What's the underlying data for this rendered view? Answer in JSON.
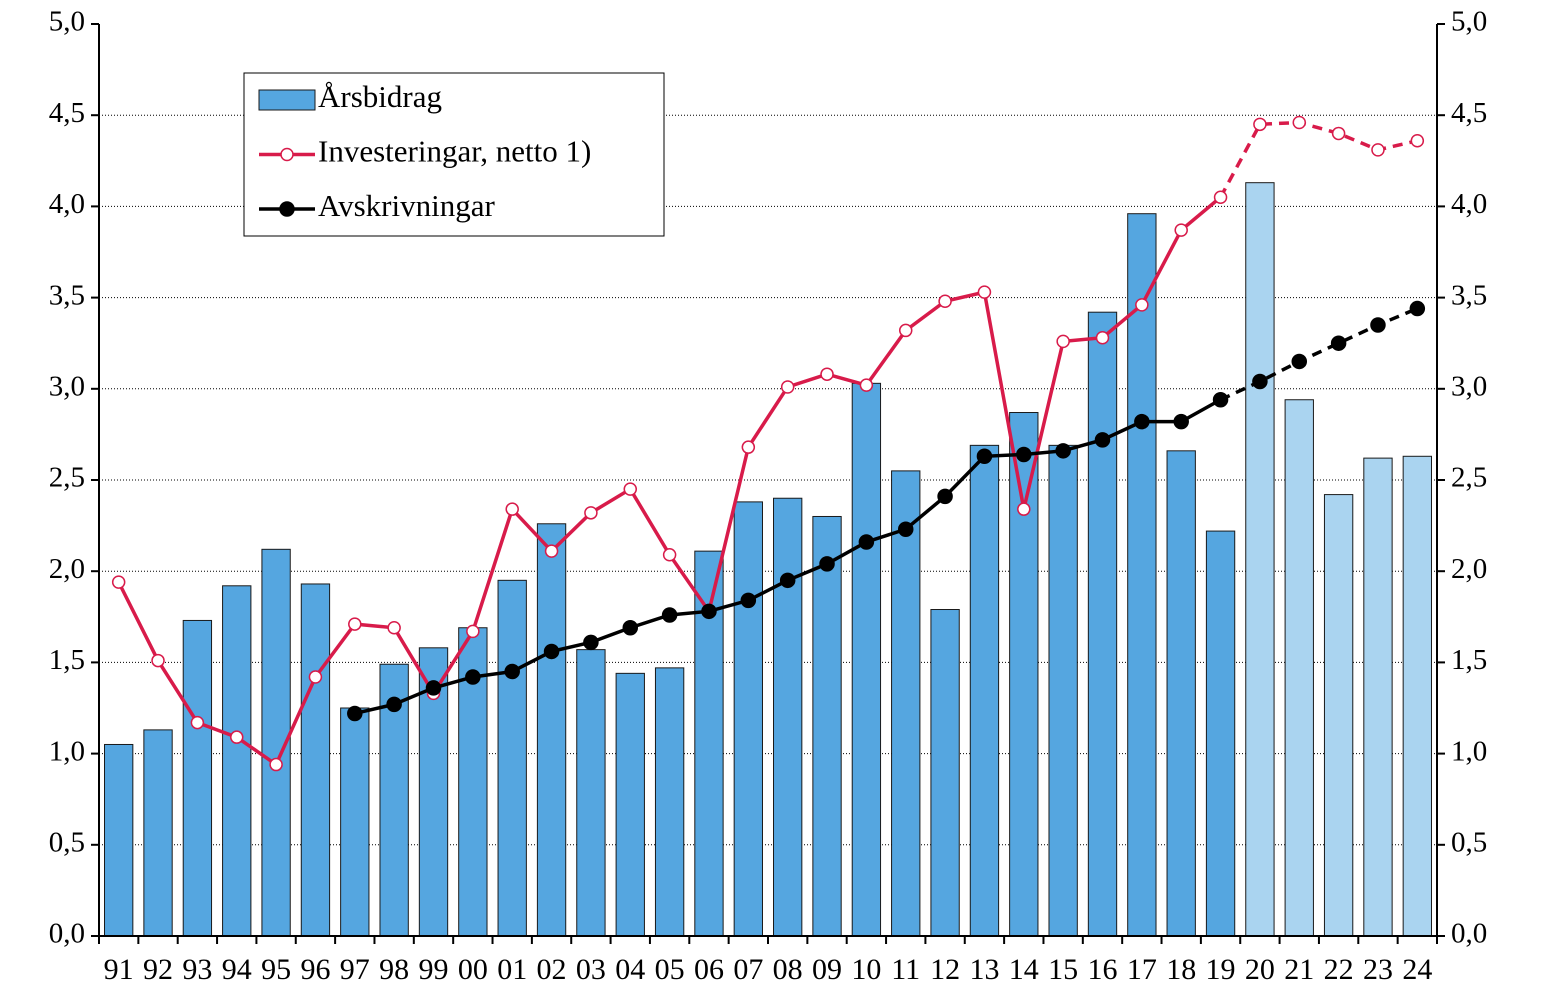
{
  "chart_data": {
    "type": "bar",
    "categories": [
      "91",
      "92",
      "93",
      "94",
      "95",
      "96",
      "97",
      "98",
      "99",
      "00",
      "01",
      "02",
      "03",
      "04",
      "05",
      "06",
      "07",
      "08",
      "09",
      "10",
      "11",
      "12",
      "13",
      "14",
      "15",
      "16",
      "17",
      "18",
      "19",
      "20",
      "21",
      "22",
      "23",
      "24"
    ],
    "series": [
      {
        "name": "Årsbidrag",
        "type": "bar",
        "color": "#55a6e0",
        "colors": [
          "#55a6e0",
          "#55a6e0",
          "#55a6e0",
          "#55a6e0",
          "#55a6e0",
          "#55a6e0",
          "#55a6e0",
          "#55a6e0",
          "#55a6e0",
          "#55a6e0",
          "#55a6e0",
          "#55a6e0",
          "#55a6e0",
          "#55a6e0",
          "#55a6e0",
          "#55a6e0",
          "#55a6e0",
          "#55a6e0",
          "#55a6e0",
          "#55a6e0",
          "#55a6e0",
          "#55a6e0",
          "#55a6e0",
          "#55a6e0",
          "#55a6e0",
          "#55a6e0",
          "#55a6e0",
          "#55a6e0",
          "#55a6e0",
          "#aad4f0",
          "#aad4f0",
          "#aad4f0",
          "#aad4f0",
          "#aad4f0"
        ],
        "values": [
          1.05,
          1.13,
          1.73,
          1.92,
          2.12,
          1.93,
          1.25,
          1.49,
          1.58,
          1.69,
          1.95,
          2.26,
          1.57,
          1.44,
          1.47,
          2.11,
          2.38,
          2.4,
          2.3,
          3.03,
          2.55,
          1.79,
          2.69,
          2.87,
          2.69,
          3.42,
          3.96,
          2.66,
          2.22,
          4.13,
          2.94,
          2.42,
          2.62,
          2.63
        ]
      },
      {
        "name": "Investeringar, netto 1)",
        "type": "line",
        "color": "#d81b4a",
        "marker": "hollow",
        "dash_start": 28,
        "values": [
          1.94,
          1.51,
          1.17,
          1.09,
          0.94,
          1.42,
          1.71,
          1.69,
          1.33,
          1.67,
          2.34,
          2.11,
          2.32,
          2.45,
          2.09,
          1.78,
          2.68,
          3.01,
          3.08,
          3.02,
          3.32,
          3.48,
          3.53,
          2.34,
          3.26,
          3.28,
          3.46,
          3.87,
          4.05,
          4.45,
          4.46,
          4.4,
          4.31,
          4.36
        ]
      },
      {
        "name": "Avskrivningar",
        "type": "line",
        "color": "#000000",
        "marker": "filled",
        "dash_start": 28,
        "values": [
          null,
          null,
          null,
          null,
          null,
          null,
          1.22,
          1.27,
          1.36,
          1.42,
          1.45,
          1.56,
          1.61,
          1.69,
          1.76,
          1.78,
          1.84,
          1.95,
          2.04,
          2.16,
          2.23,
          2.41,
          2.63,
          2.64,
          2.66,
          2.72,
          2.82,
          2.82,
          2.94,
          3.04,
          3.15,
          3.25,
          3.35,
          3.44
        ]
      }
    ],
    "ylim": [
      0,
      5
    ],
    "yticks": [
      {
        "value": 0,
        "label": "0,0"
      },
      {
        "value": 0.5,
        "label": "0,5"
      },
      {
        "value": 1,
        "label": "1,0"
      },
      {
        "value": 1.5,
        "label": "1,5"
      },
      {
        "value": 2,
        "label": "2,0"
      },
      {
        "value": 2.5,
        "label": "2,5"
      },
      {
        "value": 3,
        "label": "3,0"
      },
      {
        "value": 3.5,
        "label": "3,5"
      },
      {
        "value": 4,
        "label": "4,0"
      },
      {
        "value": 4.5,
        "label": "4,5"
      },
      {
        "value": 5,
        "label": "5,0"
      }
    ],
    "y2lim": [
      0,
      5
    ],
    "y2ticks": [
      {
        "value": 0,
        "label": "0,0"
      },
      {
        "value": 0.5,
        "label": "0,5"
      },
      {
        "value": 1,
        "label": "1,0"
      },
      {
        "value": 1.5,
        "label": "1,5"
      },
      {
        "value": 2,
        "label": "2,0"
      },
      {
        "value": 2.5,
        "label": "2,5"
      },
      {
        "value": 3,
        "label": "3,0"
      },
      {
        "value": 3.5,
        "label": "3,5"
      },
      {
        "value": 4,
        "label": "4,0"
      },
      {
        "value": 4.5,
        "label": "4,5"
      },
      {
        "value": 5,
        "label": "5,0"
      }
    ],
    "grid": true,
    "legend": "upper left"
  }
}
